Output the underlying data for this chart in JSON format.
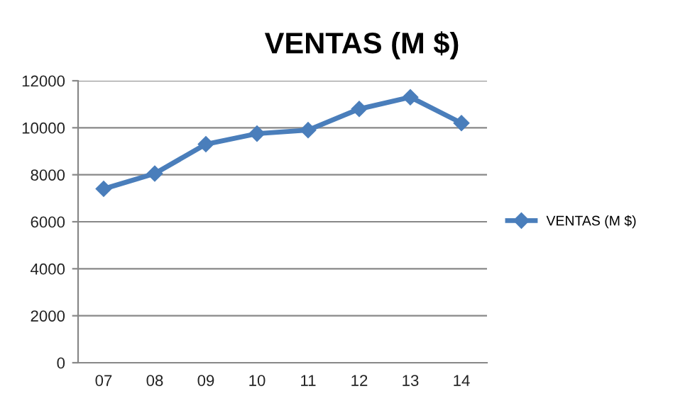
{
  "chart_data": {
    "type": "line",
    "title": "VENTAS (M $)",
    "categories": [
      "07",
      "08",
      "09",
      "10",
      "11",
      "12",
      "13",
      "14"
    ],
    "series": [
      {
        "name": "VENTAS (M $)",
        "color": "#4a7ebb",
        "values": [
          7400,
          8050,
          9300,
          9750,
          9900,
          10800,
          11300,
          10200
        ]
      }
    ],
    "ylim": [
      0,
      12000
    ],
    "yticks": [
      0,
      2000,
      4000,
      6000,
      8000,
      10000,
      12000
    ],
    "grid": "y",
    "legend": "right",
    "marker": "diamond",
    "line_style": "solid"
  }
}
